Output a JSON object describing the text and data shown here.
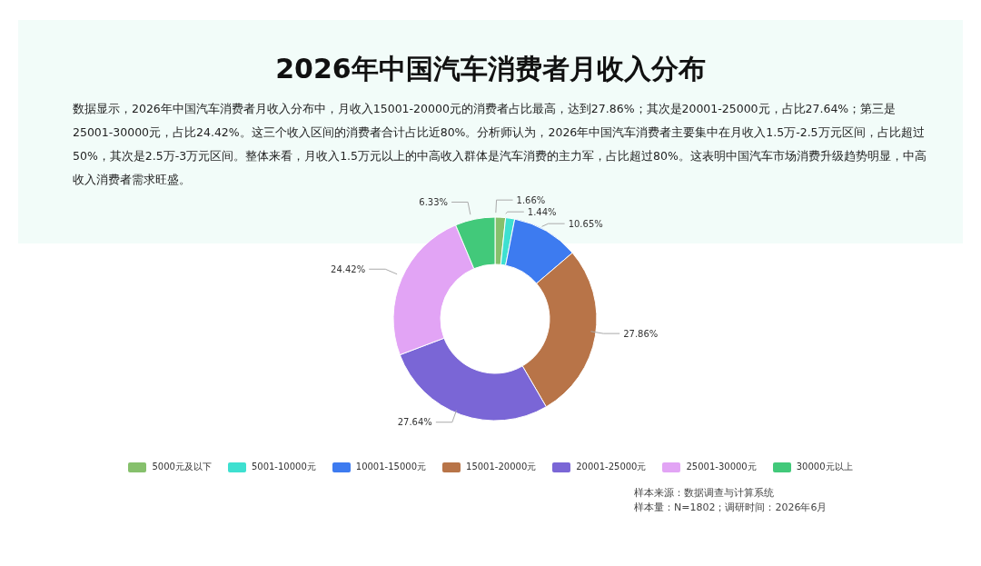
{
  "chart_data": {
    "type": "donut",
    "title": "2026年中国汽车消费者月收入分布",
    "subtitle": "数据显示，2026年中国汽车消费者月收入分布中，月收入15001-20000元的消费者占比最高，达到27.86%；其次是20001-25000元，占比27.64%；第三是25001-30000元，占比24.42%。这三个收入区间的消费者合计占比近80%。分析师认为，2026年中国汽车消费者主要集中在月收入1.5万-2.5万元区间，占比超过50%，其次是2.5万-3万元区间。整体来看，月收入1.5万元以上的中高收入群体是汽车消费的主力军，占比超过80%。这表明中国汽车市场消费升级趋势明显，中高收入消费者需求旺盛。",
    "categories": [
      "5000元及以下",
      "5001-10000元",
      "10001-15000元",
      "15001-20000元",
      "20001-25000元",
      "25001-30000元",
      "30000元以上"
    ],
    "values": [
      1.66,
      1.44,
      10.65,
      27.86,
      27.64,
      24.42,
      6.33
    ],
    "colors": [
      "#86c06c",
      "#3ee0d0",
      "#3d7bf0",
      "#b87448",
      "#7a66d6",
      "#e2a4f5",
      "#42c97a"
    ],
    "value_labels": [
      "1.66%",
      "1.44%",
      "10.65%",
      "27.86%",
      "27.64%",
      "24.42%",
      "6.33%"
    ],
    "legend": "bottom",
    "annotations": [
      "样本来源：数据调查与计算系统",
      "样本量：N=1802；调研时间：2026年6月"
    ]
  }
}
